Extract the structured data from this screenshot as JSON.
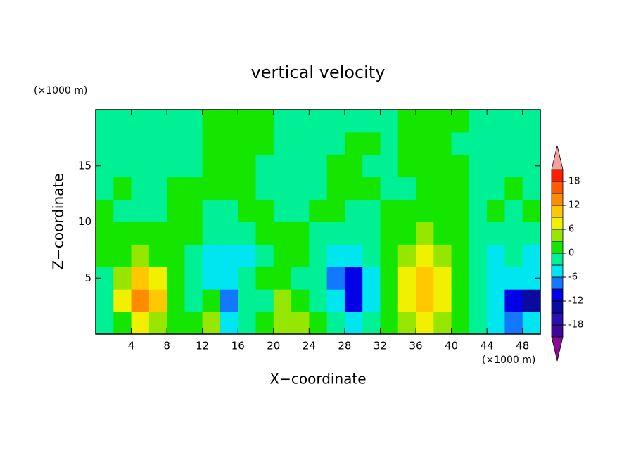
{
  "chart_data": {
    "type": "contour",
    "title": "vertical velocity",
    "x_label": "X−coordinate",
    "y_label": "Z−coordinate",
    "x_unit": "(×1000 m)",
    "y_unit": "(×1000 m)",
    "xlim": [
      0,
      50
    ],
    "ylim": [
      0,
      20
    ],
    "xticks": [
      4,
      8,
      12,
      16,
      20,
      24,
      28,
      32,
      36,
      40,
      44,
      48
    ],
    "yticks": [
      5,
      10,
      15
    ],
    "x": [
      1,
      3,
      5,
      7,
      9,
      11,
      13,
      15,
      17,
      19,
      21,
      23,
      25,
      27,
      29,
      31,
      33,
      35,
      37,
      39,
      41,
      43,
      45,
      47,
      49
    ],
    "z": [
      1,
      3,
      5,
      7,
      9,
      11,
      13,
      15,
      17,
      19
    ],
    "field": [
      [
        -1,
        2,
        7,
        5,
        1,
        1,
        4,
        -4,
        -2,
        1,
        5,
        5,
        1,
        -2,
        -4,
        -2,
        1,
        5,
        8,
        5,
        1,
        -2,
        -4,
        -7,
        -5
      ],
      [
        -2,
        8,
        14,
        9,
        1,
        -2,
        2,
        -8,
        -3,
        -1,
        3,
        1,
        -1,
        -5,
        -10,
        -5,
        1,
        7,
        10,
        8,
        2,
        -2,
        -5,
        -10,
        -14
      ],
      [
        -1,
        5,
        10,
        6,
        1,
        -3,
        -4,
        -4,
        -2,
        1,
        1,
        -1,
        -2,
        -7,
        -10,
        -4,
        1,
        7,
        10,
        8,
        2,
        -3,
        -5,
        -4,
        -4
      ],
      [
        1,
        1,
        4,
        2,
        1,
        -2,
        -4,
        -4,
        -4,
        -1,
        2,
        1,
        -2,
        -4,
        -6,
        -2,
        1,
        4,
        7,
        5,
        1,
        -3,
        -4,
        -2,
        -4
      ],
      [
        1,
        1,
        1,
        1,
        1,
        1,
        -2,
        -2,
        -2,
        1,
        2,
        1,
        -2,
        -2,
        -2,
        -1,
        1,
        2,
        4,
        2,
        1,
        -2,
        -2,
        -1,
        -2
      ],
      [
        1,
        -1,
        -2,
        -2,
        1,
        1,
        -2,
        -1,
        1,
        1,
        -1,
        -1,
        1,
        1,
        -1,
        -1,
        1,
        1,
        1,
        1,
        1,
        -1,
        1,
        -1,
        2
      ],
      [
        -1,
        1,
        -1,
        -1,
        1,
        1,
        1,
        1,
        1,
        -1,
        -1,
        -1,
        -1,
        1,
        1,
        1,
        -1,
        -1,
        1,
        1,
        1,
        -1,
        -1,
        1,
        -1
      ],
      [
        -1,
        -1,
        -1,
        -1,
        -1,
        -1,
        1,
        1,
        1,
        -1,
        -1,
        -1,
        -1,
        1,
        1,
        -1,
        -1,
        1,
        1,
        1,
        1,
        -1,
        -1,
        -1,
        -1
      ],
      [
        -1,
        -1,
        -1,
        -1,
        -1,
        -1,
        1,
        1,
        1,
        1,
        -1,
        -1,
        -1,
        -1,
        1,
        1,
        -1,
        1,
        1,
        1,
        -1,
        -1,
        -1,
        -1,
        -1
      ],
      [
        -1,
        -1,
        -1,
        -1,
        -1,
        -1,
        1,
        1,
        1,
        1,
        -1,
        -1,
        -1,
        -1,
        -1,
        -1,
        -1,
        1,
        1,
        1,
        1,
        -1,
        -1,
        -1,
        -1
      ]
    ],
    "colorbar": {
      "levels": [
        -21,
        -18,
        -15,
        -12,
        -9,
        -6,
        -3,
        0,
        3,
        6,
        9,
        12,
        15,
        18,
        21
      ],
      "colors": [
        "#8a0a9a",
        "#3a0a96",
        "#2a10b0",
        "#0a0aa0",
        "#0000e6",
        "#1478ff",
        "#00e6f0",
        "#00f096",
        "#14e600",
        "#96e600",
        "#f0f000",
        "#ffc800",
        "#ff8c00",
        "#ff5a00",
        "#ff1e00",
        "#f4a0a0"
      ],
      "ticks": [
        -18,
        -12,
        -6,
        0,
        6,
        12,
        18
      ]
    }
  }
}
